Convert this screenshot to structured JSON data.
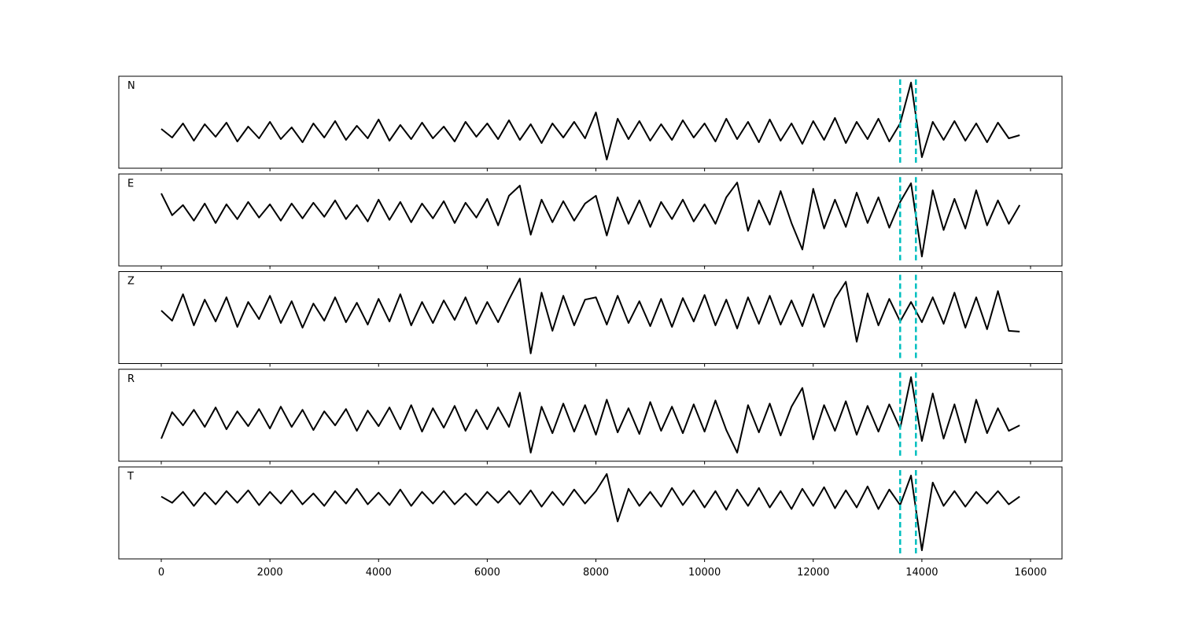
{
  "chart_data": {
    "type": "line",
    "x": [
      0,
      200,
      400,
      600,
      800,
      1000,
      1200,
      1400,
      1600,
      1800,
      2000,
      2200,
      2400,
      2600,
      2800,
      3000,
      3200,
      3400,
      3600,
      3800,
      4000,
      4200,
      4400,
      4600,
      4800,
      5000,
      5200,
      5400,
      5600,
      5800,
      6000,
      6200,
      6400,
      6600,
      6800,
      7000,
      7200,
      7400,
      7600,
      7800,
      8000,
      8200,
      8400,
      8600,
      8800,
      9000,
      9200,
      9400,
      9600,
      9800,
      10000,
      10200,
      10400,
      10600,
      10800,
      11000,
      11200,
      11400,
      11600,
      11800,
      12000,
      12200,
      12400,
      12600,
      12800,
      13000,
      13200,
      13400,
      13600,
      13800,
      14000,
      14200,
      14400,
      14600,
      14800,
      15000,
      15200,
      15400,
      15600,
      15800
    ],
    "xlim": [
      -782,
      16579
    ],
    "xticks": [
      0,
      2000,
      4000,
      6000,
      8000,
      10000,
      12000,
      14000,
      16000
    ],
    "color": "#000000",
    "vlines": {
      "values": [
        13600,
        13890
      ],
      "color": "#00bfbf",
      "style": "dashed"
    },
    "series": [
      {
        "name": "N",
        "ylim": [
          -4.7,
          7.0
        ],
        "values": [
          0.3,
          -0.8,
          1.0,
          -1.2,
          0.9,
          -0.7,
          1.1,
          -1.3,
          0.6,
          -0.9,
          1.2,
          -1.0,
          0.5,
          -1.4,
          1.0,
          -0.8,
          1.3,
          -1.1,
          0.7,
          -0.9,
          1.5,
          -1.2,
          0.8,
          -1.0,
          1.1,
          -0.9,
          0.6,
          -1.3,
          1.2,
          -0.7,
          1.0,
          -1.0,
          1.4,
          -1.1,
          0.9,
          -1.5,
          1.0,
          -0.8,
          1.2,
          -0.9,
          2.4,
          -3.6,
          1.6,
          -1.0,
          1.3,
          -1.2,
          0.9,
          -1.1,
          1.4,
          -0.8,
          1.0,
          -1.3,
          1.6,
          -1.0,
          1.2,
          -1.4,
          1.5,
          -1.2,
          1.0,
          -1.6,
          1.3,
          -1.1,
          1.7,
          -1.5,
          1.2,
          -1.0,
          1.6,
          -1.3,
          1.0,
          6.2,
          -3.3,
          1.2,
          -1.1,
          1.3,
          -1.2,
          1.0,
          -1.4,
          1.1,
          -0.9,
          -0.5
        ]
      },
      {
        "name": "E",
        "ylim": [
          -7.0,
          4.8
        ],
        "values": [
          2.3,
          -0.5,
          0.8,
          -1.2,
          1.0,
          -1.5,
          0.9,
          -1.0,
          1.2,
          -0.8,
          0.9,
          -1.2,
          1.0,
          -0.9,
          1.1,
          -0.7,
          1.4,
          -1.0,
          0.8,
          -1.3,
          1.5,
          -1.1,
          1.2,
          -1.4,
          1.0,
          -0.9,
          1.3,
          -1.5,
          1.1,
          -0.8,
          1.6,
          -1.8,
          2.0,
          3.3,
          -3.0,
          1.5,
          -1.4,
          1.3,
          -1.2,
          1.0,
          2.0,
          -3.1,
          1.8,
          -1.6,
          1.4,
          -2.0,
          1.2,
          -1.0,
          1.5,
          -1.3,
          0.9,
          -1.6,
          1.8,
          3.7,
          -2.5,
          1.4,
          -1.7,
          2.6,
          -1.5,
          -4.9,
          2.9,
          -2.2,
          1.5,
          -2.0,
          2.4,
          -1.5,
          1.8,
          -2.1,
          1.2,
          3.6,
          -5.8,
          2.7,
          -2.4,
          1.6,
          -2.2,
          2.7,
          -1.8,
          1.4,
          -1.6,
          0.8
        ]
      },
      {
        "name": "Z",
        "ylim": [
          -6.7,
          5.1
        ],
        "values": [
          0.1,
          -1.2,
          2.2,
          -1.8,
          1.5,
          -1.3,
          1.8,
          -2.0,
          1.2,
          -1.0,
          2.0,
          -1.5,
          1.3,
          -2.1,
          1.0,
          -1.2,
          1.8,
          -1.4,
          1.1,
          -1.7,
          1.6,
          -1.3,
          2.2,
          -1.8,
          1.2,
          -1.5,
          1.4,
          -1.1,
          1.8,
          -1.6,
          1.2,
          -1.4,
          1.5,
          4.2,
          -5.4,
          2.4,
          -2.5,
          2.0,
          -1.8,
          1.5,
          1.8,
          -1.7,
          2.0,
          -1.5,
          1.3,
          -1.9,
          1.6,
          -2.0,
          1.7,
          -1.3,
          2.1,
          -1.8,
          1.5,
          -2.2,
          1.8,
          -1.6,
          2.0,
          -1.7,
          1.4,
          -1.9,
          2.2,
          -2.0,
          1.6,
          3.8,
          -3.9,
          2.3,
          -1.8,
          1.6,
          -1.3,
          1.2,
          -1.4,
          1.8,
          -1.6,
          2.4,
          -2.1,
          1.8,
          -2.3,
          2.6,
          -2.5,
          -2.6
        ]
      },
      {
        "name": "R",
        "ylim": [
          -5.4,
          6.4
        ],
        "values": [
          -2.5,
          0.9,
          -0.8,
          1.2,
          -1.0,
          1.5,
          -1.3,
          1.0,
          -0.9,
          1.3,
          -1.2,
          1.6,
          -1.0,
          1.2,
          -1.4,
          1.0,
          -0.8,
          1.3,
          -1.5,
          1.1,
          -0.9,
          1.5,
          -1.3,
          1.8,
          -1.6,
          1.4,
          -1.1,
          1.7,
          -1.5,
          1.2,
          -1.3,
          1.5,
          -1.0,
          3.4,
          -4.3,
          1.6,
          -1.8,
          2.0,
          -1.6,
          1.8,
          -2.0,
          2.5,
          -1.7,
          1.4,
          -1.9,
          2.2,
          -1.5,
          1.6,
          -1.8,
          1.9,
          -1.6,
          2.4,
          -1.4,
          -4.3,
          1.8,
          -1.7,
          2.0,
          -2.1,
          1.6,
          4.0,
          -2.6,
          1.8,
          -1.5,
          2.3,
          -2.0,
          1.7,
          -1.6,
          1.9,
          -1.2,
          5.4,
          -2.8,
          3.3,
          -2.5,
          1.9,
          -3.0,
          2.5,
          -1.8,
          1.4,
          -1.5,
          -0.8
        ]
      },
      {
        "name": "T",
        "ylim": [
          -7.8,
          4.0
        ],
        "values": [
          0.2,
          -0.6,
          0.8,
          -1.0,
          0.7,
          -0.8,
          0.9,
          -0.6,
          1.0,
          -0.9,
          0.8,
          -0.7,
          1.0,
          -0.8,
          0.6,
          -1.0,
          0.9,
          -0.7,
          1.2,
          -0.8,
          0.7,
          -0.9,
          1.1,
          -1.0,
          0.8,
          -0.7,
          0.9,
          -0.8,
          0.6,
          -0.9,
          0.8,
          -0.6,
          0.9,
          -0.8,
          1.0,
          -1.1,
          0.8,
          -0.9,
          1.1,
          -0.7,
          0.9,
          3.1,
          -3.0,
          1.2,
          -1.0,
          0.8,
          -1.1,
          1.3,
          -0.9,
          1.0,
          -1.2,
          0.9,
          -1.5,
          1.1,
          -1.0,
          1.3,
          -1.2,
          0.9,
          -1.4,
          1.2,
          -1.0,
          1.4,
          -1.3,
          1.0,
          -1.2,
          1.5,
          -1.4,
          1.1,
          -0.9,
          2.9,
          -6.7,
          2.0,
          -1.0,
          0.9,
          -1.1,
          0.8,
          -0.7,
          0.9,
          -0.8,
          0.2
        ]
      }
    ]
  }
}
